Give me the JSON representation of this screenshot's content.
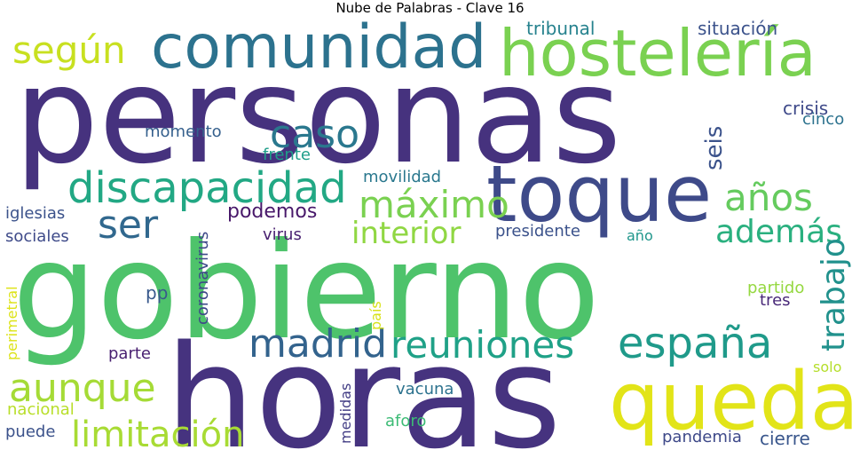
{
  "title": "Nube de Palabras - Clave 16",
  "words": [
    {
      "text": "personas",
      "color": "#46327e"
    },
    {
      "text": "gobierno",
      "color": "#4ec36b"
    },
    {
      "text": "horas",
      "color": "#46337f"
    },
    {
      "text": "comunidad",
      "color": "#2c728e"
    },
    {
      "text": "hostelería",
      "color": "#7ad151"
    },
    {
      "text": "toque",
      "color": "#3e4a89"
    },
    {
      "text": "queda",
      "color": "#e2e418"
    },
    {
      "text": "discapacidad",
      "color": "#22a884"
    },
    {
      "text": "españa",
      "color": "#1f9a8a"
    },
    {
      "text": "reuniones",
      "color": "#1fa187"
    },
    {
      "text": "madrid",
      "color": "#33638d"
    },
    {
      "text": "aunque",
      "color": "#a5db36"
    },
    {
      "text": "máximo",
      "color": "#7ad151"
    },
    {
      "text": "según",
      "color": "#c8e020"
    },
    {
      "text": "caso",
      "color": "#2a788e"
    },
    {
      "text": "ser",
      "color": "#31688e"
    },
    {
      "text": "años",
      "color": "#65cb5e"
    },
    {
      "text": "interior",
      "color": "#90d743"
    },
    {
      "text": "además",
      "color": "#2ab07f"
    },
    {
      "text": "limitación",
      "color": "#a8db34"
    },
    {
      "text": "trabajo",
      "color": "#21918c"
    },
    {
      "text": "seis",
      "color": "#3b528b"
    },
    {
      "text": "podemos",
      "color": "#48186a"
    },
    {
      "text": "tribunal",
      "color": "#26828e"
    },
    {
      "text": "situación",
      "color": "#3b528b"
    },
    {
      "text": "crisis",
      "color": "#3e4989"
    },
    {
      "text": "cinco",
      "color": "#2c728e"
    },
    {
      "text": "momento",
      "color": "#35608d"
    },
    {
      "text": "frente",
      "color": "#1f9e89"
    },
    {
      "text": "movilidad",
      "color": "#2a788e"
    },
    {
      "text": "iglesias",
      "color": "#3b528b"
    },
    {
      "text": "sociales",
      "color": "#3e4a89"
    },
    {
      "text": "coronavirus",
      "color": "#3e4989"
    },
    {
      "text": "virus",
      "color": "#481f70"
    },
    {
      "text": "presidente",
      "color": "#3b528b"
    },
    {
      "text": "año",
      "color": "#1f968b"
    },
    {
      "text": "pp",
      "color": "#38598c"
    },
    {
      "text": "perimetral",
      "color": "#dde318"
    },
    {
      "text": "país",
      "color": "#d8e219"
    },
    {
      "text": "partido",
      "color": "#95d840"
    },
    {
      "text": "tres",
      "color": "#482878"
    },
    {
      "text": "parte",
      "color": "#481f70"
    },
    {
      "text": "medidas",
      "color": "#433e85"
    },
    {
      "text": "vacuna",
      "color": "#2c728e"
    },
    {
      "text": "solo",
      "color": "#b5de2b"
    },
    {
      "text": "nacional",
      "color": "#b8de29"
    },
    {
      "text": "aforo",
      "color": "#3cbb75"
    },
    {
      "text": "puede",
      "color": "#3b528b"
    },
    {
      "text": "pandemia",
      "color": "#3e4989"
    },
    {
      "text": "cierre",
      "color": "#39568c"
    }
  ]
}
